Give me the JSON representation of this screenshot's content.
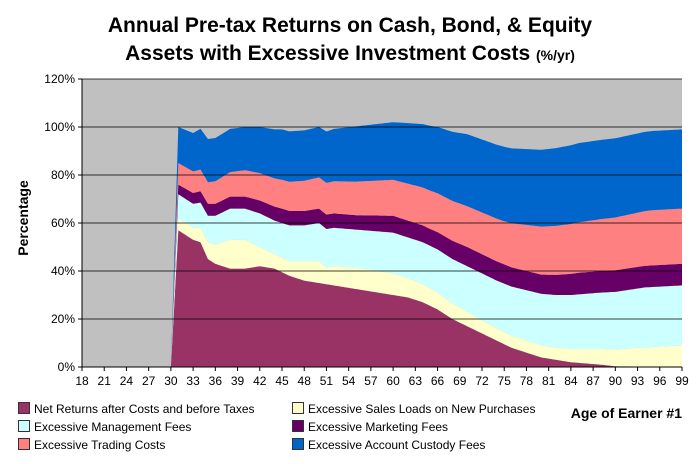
{
  "title": {
    "line1": "Annual Pre-tax Returns on Cash, Bond, & Equity",
    "line2": "Assets with Excessive Investment Costs",
    "units": "(%/yr)"
  },
  "chart_data": {
    "type": "area",
    "stacked": true,
    "title": "Annual Pre-tax Returns on Cash, Bond, & Equity Assets with Excessive Investment Costs (%/yr)",
    "xlabel": "Age of Earner #1",
    "ylabel": "Percentage",
    "ylim": [
      0,
      120
    ],
    "yticks": [
      "0%",
      "20%",
      "40%",
      "60%",
      "80%",
      "100%",
      "120%"
    ],
    "xticks": [
      "18",
      "21",
      "24",
      "27",
      "30",
      "33",
      "36",
      "39",
      "42",
      "45",
      "48",
      "51",
      "54",
      "57",
      "60",
      "63",
      "66",
      "69",
      "72",
      "75",
      "78",
      "81",
      "84",
      "87",
      "90",
      "93",
      "96",
      "99"
    ],
    "x_start": 18,
    "x_end": 99,
    "active_from_age": 30,
    "colors": {
      "plot_background": "#c0c0c0",
      "gridline": "#000000"
    },
    "series": [
      {
        "name": "Net Returns after Costs and before Taxes",
        "color": "#993366",
        "keypoints": [
          [
            30,
            0
          ],
          [
            31,
            57
          ],
          [
            32,
            55
          ],
          [
            33,
            53
          ],
          [
            34,
            52
          ],
          [
            35,
            45
          ],
          [
            36,
            43
          ],
          [
            37,
            42
          ],
          [
            38,
            41
          ],
          [
            40,
            41
          ],
          [
            42,
            42
          ],
          [
            44,
            41
          ],
          [
            46,
            38
          ],
          [
            48,
            36
          ],
          [
            50,
            35
          ],
          [
            52,
            34
          ],
          [
            56,
            32
          ],
          [
            60,
            30
          ],
          [
            62,
            29
          ],
          [
            64,
            27
          ],
          [
            66,
            24
          ],
          [
            68,
            20
          ],
          [
            72,
            14
          ],
          [
            76,
            8
          ],
          [
            80,
            4
          ],
          [
            84,
            2
          ],
          [
            88,
            1
          ],
          [
            90,
            0.3
          ],
          [
            99,
            0
          ]
        ]
      },
      {
        "name": "Excessive Sales Loads on New Purchases",
        "color": "#ffffcc",
        "keypoints": [
          [
            30,
            0
          ],
          [
            31,
            5
          ],
          [
            33,
            5
          ],
          [
            35,
            7
          ],
          [
            36,
            8
          ],
          [
            38,
            12
          ],
          [
            40,
            12
          ],
          [
            42,
            8
          ],
          [
            44,
            6
          ],
          [
            46,
            6
          ],
          [
            48,
            8
          ],
          [
            50,
            9
          ],
          [
            51,
            7
          ],
          [
            52,
            8
          ],
          [
            56,
            9
          ],
          [
            60,
            9
          ],
          [
            62,
            8
          ],
          [
            66,
            7
          ],
          [
            70,
            6
          ],
          [
            74,
            5
          ],
          [
            78,
            5
          ],
          [
            82,
            5
          ],
          [
            86,
            6
          ],
          [
            90,
            7
          ],
          [
            94,
            8
          ],
          [
            99,
            9
          ]
        ]
      },
      {
        "name": "Excessive Management Fees",
        "color": "#ccffff",
        "keypoints": [
          [
            30,
            0
          ],
          [
            31,
            10
          ],
          [
            33,
            10
          ],
          [
            35,
            11
          ],
          [
            36,
            12
          ],
          [
            38,
            13
          ],
          [
            40,
            13
          ],
          [
            42,
            14
          ],
          [
            44,
            14
          ],
          [
            46,
            15
          ],
          [
            48,
            15
          ],
          [
            50,
            16
          ],
          [
            51,
            16
          ],
          [
            52,
            16
          ],
          [
            56,
            16
          ],
          [
            60,
            17
          ],
          [
            62,
            17
          ],
          [
            66,
            18
          ],
          [
            70,
            19
          ],
          [
            74,
            20
          ],
          [
            78,
            21
          ],
          [
            82,
            22
          ],
          [
            86,
            23
          ],
          [
            90,
            24
          ],
          [
            94,
            25
          ],
          [
            99,
            25
          ]
        ]
      },
      {
        "name": "Excessive Marketing Fees",
        "color": "#660066",
        "keypoints": [
          [
            30,
            0
          ],
          [
            31,
            4
          ],
          [
            35,
            5
          ],
          [
            40,
            5
          ],
          [
            45,
            6
          ],
          [
            50,
            6
          ],
          [
            55,
            6
          ],
          [
            60,
            7
          ],
          [
            65,
            7
          ],
          [
            70,
            8
          ],
          [
            75,
            8
          ],
          [
            80,
            8
          ],
          [
            85,
            9
          ],
          [
            90,
            9
          ],
          [
            99,
            9
          ]
        ]
      },
      {
        "name": "Excessive Trading Costs",
        "color": "#ff8080",
        "keypoints": [
          [
            30,
            0
          ],
          [
            31,
            9
          ],
          [
            33,
            9
          ],
          [
            35,
            9
          ],
          [
            40,
            11
          ],
          [
            45,
            12
          ],
          [
            50,
            13
          ],
          [
            55,
            14
          ],
          [
            60,
            15
          ],
          [
            65,
            16
          ],
          [
            70,
            17
          ],
          [
            75,
            18
          ],
          [
            80,
            20
          ],
          [
            85,
            21
          ],
          [
            90,
            22
          ],
          [
            95,
            23
          ],
          [
            99,
            23
          ]
        ]
      },
      {
        "name": "Excessive Account Custody Fees",
        "color": "#0066cc",
        "keypoints": [
          [
            30,
            0
          ],
          [
            31,
            15
          ],
          [
            33,
            16
          ],
          [
            35,
            18
          ],
          [
            40,
            18
          ],
          [
            45,
            21
          ],
          [
            50,
            21
          ],
          [
            55,
            23
          ],
          [
            60,
            24
          ],
          [
            65,
            27
          ],
          [
            70,
            30
          ],
          [
            75,
            31
          ],
          [
            80,
            32
          ],
          [
            85,
            33
          ],
          [
            90,
            33
          ],
          [
            95,
            33
          ],
          [
            99,
            33
          ]
        ]
      }
    ]
  }
}
